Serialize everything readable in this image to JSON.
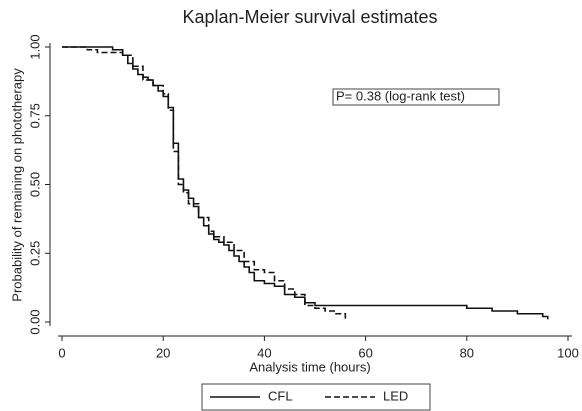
{
  "chart_data": {
    "type": "line",
    "step": true,
    "title": "Kaplan-Meier survival estimates",
    "xlabel": "Analysis time (hours)",
    "ylabel": "Probability of remaining on phototherapy",
    "annotation": "P= 0.38 (log-rank test)",
    "xlim": [
      0,
      100
    ],
    "xticks": [
      0,
      20,
      40,
      60,
      80,
      100
    ],
    "ylim": [
      0,
      1
    ],
    "yticks": [
      {
        "value": 0,
        "label": "0.00"
      },
      {
        "value": 0.25,
        "label": "0.25"
      },
      {
        "value": 0.5,
        "label": "0.50"
      },
      {
        "value": 0.75,
        "label": "0.75"
      },
      {
        "value": 1,
        "label": "1.00"
      }
    ],
    "grid": false,
    "series": [
      {
        "name": "CFL",
        "color": "#111111",
        "dashed": false,
        "x": [
          0,
          10,
          12,
          13,
          14,
          15,
          16,
          17,
          18,
          19,
          20,
          21,
          22,
          23,
          24,
          25,
          26,
          27,
          28,
          29,
          30,
          31,
          32,
          33,
          34,
          35,
          36,
          37,
          38,
          40,
          42,
          44,
          46,
          48,
          50,
          55,
          60,
          70,
          80,
          85,
          90,
          95,
          96
        ],
        "values": [
          1.0,
          0.99,
          0.97,
          0.94,
          0.92,
          0.9,
          0.89,
          0.88,
          0.86,
          0.84,
          0.82,
          0.78,
          0.65,
          0.52,
          0.48,
          0.45,
          0.42,
          0.38,
          0.35,
          0.32,
          0.3,
          0.29,
          0.28,
          0.26,
          0.24,
          0.22,
          0.2,
          0.18,
          0.15,
          0.14,
          0.13,
          0.1,
          0.09,
          0.07,
          0.06,
          0.06,
          0.06,
          0.06,
          0.05,
          0.04,
          0.03,
          0.02,
          0.01
        ]
      },
      {
        "name": "LED",
        "color": "#111111",
        "dashed": true,
        "x": [
          0,
          5,
          7,
          12,
          14,
          16,
          18,
          20,
          21,
          22,
          23,
          24,
          25,
          27,
          29,
          30,
          32,
          34,
          36,
          38,
          40,
          42,
          44,
          46,
          48,
          50,
          52,
          54,
          56
        ],
        "values": [
          1.0,
          0.99,
          0.98,
          0.97,
          0.93,
          0.88,
          0.86,
          0.83,
          0.77,
          0.62,
          0.5,
          0.47,
          0.43,
          0.38,
          0.33,
          0.31,
          0.29,
          0.26,
          0.22,
          0.19,
          0.18,
          0.15,
          0.12,
          0.1,
          0.06,
          0.05,
          0.04,
          0.03,
          0.01
        ]
      }
    ]
  }
}
